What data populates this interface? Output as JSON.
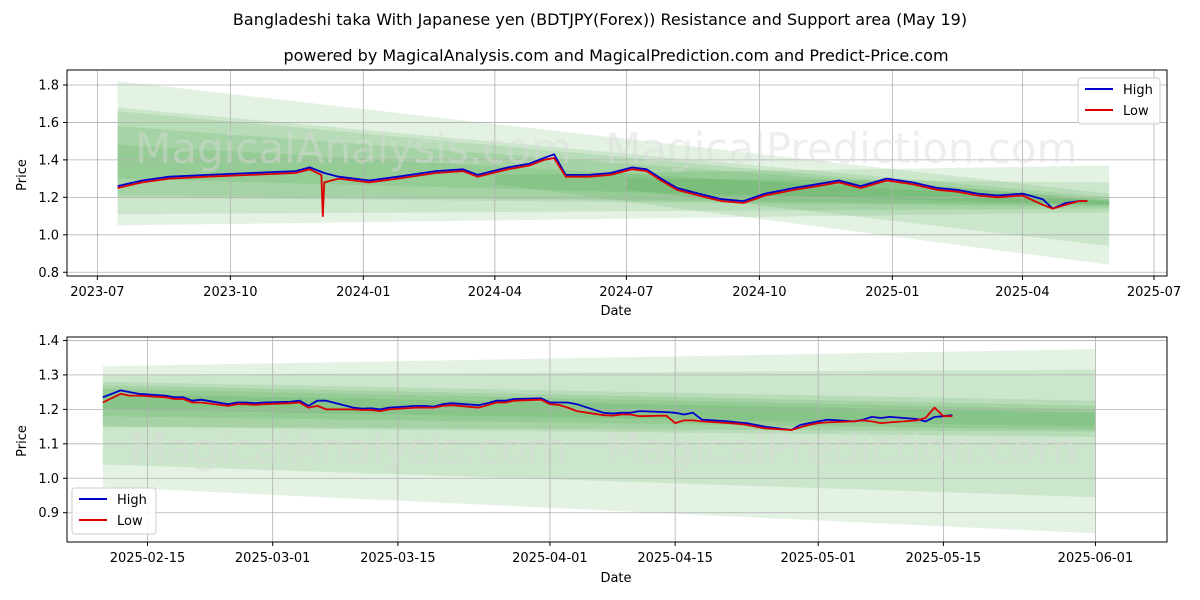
{
  "title": "Bangladeshi taka With Japanese yen (BDTJPY(Forex)) Resistance and Support area (May 19)",
  "subtitle": "powered by MagicalAnalysis.com and MagicalPrediction.com and Predict-Price.com",
  "watermarks": [
    "MagicalAnalysis.com",
    "MagicalPrediction.com"
  ],
  "colors": {
    "high": "#0000cc",
    "low": "#dd0000",
    "band": "#2e9b2e",
    "grid": "#b0b0b0"
  },
  "chart_data": [
    {
      "type": "line",
      "panel": "full-history",
      "xlabel": "Date",
      "ylabel": "Price",
      "xlim": [
        "2023-06-10",
        "2025-07-10"
      ],
      "ylim": [
        0.78,
        1.88
      ],
      "xticks": [
        {
          "label": "2023-07",
          "date": "2023-07-01"
        },
        {
          "label": "2023-10",
          "date": "2023-10-01"
        },
        {
          "label": "2024-01",
          "date": "2024-01-01"
        },
        {
          "label": "2024-04",
          "date": "2024-04-01"
        },
        {
          "label": "2024-07",
          "date": "2024-07-01"
        },
        {
          "label": "2024-10",
          "date": "2024-10-01"
        },
        {
          "label": "2025-01",
          "date": "2025-01-01"
        },
        {
          "label": "2025-04",
          "date": "2025-04-01"
        },
        {
          "label": "2025-07",
          "date": "2025-07-01"
        }
      ],
      "yticks": [
        0.8,
        1.0,
        1.2,
        1.4,
        1.6,
        1.8
      ],
      "legend": {
        "position": "top-right",
        "entries": [
          "High",
          "Low"
        ]
      },
      "series": [
        {
          "name": "High",
          "x": [
            "2023-07-15",
            "2023-08-01",
            "2023-08-20",
            "2023-09-15",
            "2023-10-15",
            "2023-11-15",
            "2023-11-25",
            "2023-12-05",
            "2023-12-15",
            "2024-01-05",
            "2024-01-25",
            "2024-02-20",
            "2024-03-10",
            "2024-03-20",
            "2024-04-10",
            "2024-04-25",
            "2024-05-05",
            "2024-05-12",
            "2024-05-20",
            "2024-06-05",
            "2024-06-20",
            "2024-07-05",
            "2024-07-15",
            "2024-07-25",
            "2024-08-05",
            "2024-08-20",
            "2024-09-05",
            "2024-09-20",
            "2024-10-05",
            "2024-10-25",
            "2024-11-10",
            "2024-11-25",
            "2024-12-10",
            "2024-12-28",
            "2025-01-15",
            "2025-02-01",
            "2025-02-15",
            "2025-03-01",
            "2025-03-15",
            "2025-04-01",
            "2025-04-15",
            "2025-04-22",
            "2025-05-01",
            "2025-05-10",
            "2025-05-16"
          ],
          "values": [
            1.26,
            1.29,
            1.31,
            1.32,
            1.33,
            1.34,
            1.36,
            1.33,
            1.31,
            1.29,
            1.31,
            1.34,
            1.35,
            1.32,
            1.36,
            1.38,
            1.41,
            1.43,
            1.32,
            1.32,
            1.33,
            1.36,
            1.35,
            1.3,
            1.25,
            1.22,
            1.19,
            1.18,
            1.22,
            1.25,
            1.27,
            1.29,
            1.26,
            1.3,
            1.28,
            1.25,
            1.24,
            1.22,
            1.21,
            1.22,
            1.19,
            1.14,
            1.17,
            1.18,
            1.18
          ]
        },
        {
          "name": "Low",
          "x": [
            "2023-07-15",
            "2023-08-01",
            "2023-08-20",
            "2023-09-15",
            "2023-10-15",
            "2023-11-15",
            "2023-11-25",
            "2023-12-03",
            "2023-12-04",
            "2023-12-05",
            "2023-12-15",
            "2024-01-05",
            "2024-01-25",
            "2024-02-20",
            "2024-03-10",
            "2024-03-20",
            "2024-04-10",
            "2024-04-25",
            "2024-05-05",
            "2024-05-12",
            "2024-05-20",
            "2024-06-05",
            "2024-06-20",
            "2024-07-05",
            "2024-07-15",
            "2024-07-25",
            "2024-08-05",
            "2024-08-20",
            "2024-09-05",
            "2024-09-20",
            "2024-10-05",
            "2024-10-25",
            "2024-11-10",
            "2024-11-25",
            "2024-12-10",
            "2024-12-28",
            "2025-01-15",
            "2025-02-01",
            "2025-02-15",
            "2025-03-01",
            "2025-03-15",
            "2025-04-01",
            "2025-04-15",
            "2025-04-22",
            "2025-05-01",
            "2025-05-10",
            "2025-05-16"
          ],
          "values": [
            1.25,
            1.28,
            1.3,
            1.31,
            1.32,
            1.33,
            1.35,
            1.32,
            1.1,
            1.28,
            1.3,
            1.28,
            1.3,
            1.33,
            1.34,
            1.31,
            1.35,
            1.37,
            1.4,
            1.41,
            1.31,
            1.31,
            1.32,
            1.35,
            1.34,
            1.29,
            1.24,
            1.21,
            1.18,
            1.17,
            1.21,
            1.24,
            1.26,
            1.28,
            1.25,
            1.29,
            1.27,
            1.24,
            1.23,
            1.21,
            1.2,
            1.21,
            1.16,
            1.14,
            1.16,
            1.18,
            1.18
          ]
        }
      ],
      "bands": [
        {
          "x": [
            "2023-07-15",
            "2025-05-31"
          ],
          "upper": [
            1.82,
            1.22
          ],
          "lower": [
            1.05,
            1.12
          ]
        },
        {
          "x": [
            "2023-07-15",
            "2025-05-31"
          ],
          "upper": [
            1.68,
            1.2
          ],
          "lower": [
            1.11,
            1.14
          ]
        },
        {
          "x": [
            "2023-07-15",
            "2025-05-31"
          ],
          "upper": [
            1.66,
            1.18
          ],
          "lower": [
            1.2,
            1.15
          ]
        },
        {
          "x": [
            "2023-07-15",
            "2025-05-31"
          ],
          "upper": [
            1.58,
            1.19
          ],
          "lower": [
            1.3,
            1.16
          ]
        },
        {
          "x": [
            "2023-07-15",
            "2025-05-31"
          ],
          "upper": [
            1.48,
            1.18
          ],
          "lower": [
            1.21,
            1.16
          ]
        },
        {
          "x": [
            "2024-04-01",
            "2025-05-31"
          ],
          "upper": [
            1.32,
            1.37
          ],
          "lower": [
            1.27,
            0.84
          ]
        },
        {
          "x": [
            "2024-07-01",
            "2025-05-31"
          ],
          "upper": [
            1.3,
            1.28
          ],
          "lower": [
            1.24,
            0.94
          ]
        }
      ]
    },
    {
      "type": "line",
      "panel": "recent",
      "xlabel": "Date",
      "ylabel": "Price",
      "xlim": [
        "2025-02-06",
        "2025-06-09"
      ],
      "ylim": [
        0.815,
        1.41
      ],
      "xticks": [
        {
          "label": "2025-02-15",
          "date": "2025-02-15"
        },
        {
          "label": "2025-03-01",
          "date": "2025-03-01"
        },
        {
          "label": "2025-03-15",
          "date": "2025-03-15"
        },
        {
          "label": "2025-04-01",
          "date": "2025-04-01"
        },
        {
          "label": "2025-04-15",
          "date": "2025-04-15"
        },
        {
          "label": "2025-05-01",
          "date": "2025-05-01"
        },
        {
          "label": "2025-05-15",
          "date": "2025-05-15"
        },
        {
          "label": "2025-06-01",
          "date": "2025-06-01"
        }
      ],
      "yticks": [
        0.9,
        1.0,
        1.1,
        1.2,
        1.3,
        1.4
      ],
      "legend": {
        "position": "bottom-left",
        "entries": [
          "High",
          "Low"
        ]
      },
      "series": [
        {
          "name": "High",
          "x": [
            "2025-02-10",
            "2025-02-12",
            "2025-02-13",
            "2025-02-14",
            "2025-02-17",
            "2025-02-18",
            "2025-02-19",
            "2025-02-20",
            "2025-02-21",
            "2025-02-24",
            "2025-02-25",
            "2025-02-26",
            "2025-02-27",
            "2025-02-28",
            "2025-03-03",
            "2025-03-04",
            "2025-03-05",
            "2025-03-06",
            "2025-03-07",
            "2025-03-10",
            "2025-03-11",
            "2025-03-12",
            "2025-03-13",
            "2025-03-14",
            "2025-03-17",
            "2025-03-18",
            "2025-03-19",
            "2025-03-20",
            "2025-03-21",
            "2025-03-24",
            "2025-03-25",
            "2025-03-26",
            "2025-03-27",
            "2025-03-28",
            "2025-03-31",
            "2025-04-01",
            "2025-04-02",
            "2025-04-03",
            "2025-04-04",
            "2025-04-07",
            "2025-04-08",
            "2025-04-09",
            "2025-04-10",
            "2025-04-11",
            "2025-04-14",
            "2025-04-15",
            "2025-04-16",
            "2025-04-17",
            "2025-04-18",
            "2025-04-21",
            "2025-04-22",
            "2025-04-23",
            "2025-04-24",
            "2025-04-25",
            "2025-04-28",
            "2025-04-29",
            "2025-04-30",
            "2025-05-01",
            "2025-05-02",
            "2025-05-05",
            "2025-05-06",
            "2025-05-07",
            "2025-05-08",
            "2025-05-09",
            "2025-05-12",
            "2025-05-13",
            "2025-05-14",
            "2025-05-15",
            "2025-05-16"
          ],
          "values": [
            1.235,
            1.255,
            1.25,
            1.245,
            1.24,
            1.235,
            1.235,
            1.225,
            1.228,
            1.215,
            1.22,
            1.22,
            1.218,
            1.22,
            1.222,
            1.225,
            1.21,
            1.225,
            1.225,
            1.205,
            1.202,
            1.203,
            1.2,
            1.205,
            1.21,
            1.21,
            1.208,
            1.215,
            1.218,
            1.212,
            1.218,
            1.225,
            1.225,
            1.23,
            1.232,
            1.22,
            1.22,
            1.22,
            1.215,
            1.19,
            1.188,
            1.19,
            1.19,
            1.195,
            1.192,
            1.19,
            1.185,
            1.19,
            1.17,
            1.165,
            1.162,
            1.16,
            1.155,
            1.15,
            1.14,
            1.155,
            1.16,
            1.165,
            1.17,
            1.165,
            1.17,
            1.178,
            1.175,
            1.178,
            1.172,
            1.165,
            1.178,
            1.18,
            1.183
          ]
        },
        {
          "name": "Low",
          "x": [
            "2025-02-10",
            "2025-02-12",
            "2025-02-13",
            "2025-02-14",
            "2025-02-17",
            "2025-02-18",
            "2025-02-19",
            "2025-02-20",
            "2025-02-21",
            "2025-02-24",
            "2025-02-25",
            "2025-02-26",
            "2025-02-27",
            "2025-02-28",
            "2025-03-03",
            "2025-03-04",
            "2025-03-05",
            "2025-03-06",
            "2025-03-07",
            "2025-03-10",
            "2025-03-11",
            "2025-03-12",
            "2025-03-13",
            "2025-03-14",
            "2025-03-17",
            "2025-03-18",
            "2025-03-19",
            "2025-03-20",
            "2025-03-21",
            "2025-03-24",
            "2025-03-25",
            "2025-03-26",
            "2025-03-27",
            "2025-03-28",
            "2025-03-31",
            "2025-04-01",
            "2025-04-02",
            "2025-04-03",
            "2025-04-04",
            "2025-04-07",
            "2025-04-08",
            "2025-04-09",
            "2025-04-10",
            "2025-04-11",
            "2025-04-14",
            "2025-04-15",
            "2025-04-16",
            "2025-04-17",
            "2025-04-18",
            "2025-04-21",
            "2025-04-22",
            "2025-04-23",
            "2025-04-24",
            "2025-04-25",
            "2025-04-28",
            "2025-04-29",
            "2025-04-30",
            "2025-05-01",
            "2025-05-02",
            "2025-05-05",
            "2025-05-06",
            "2025-05-07",
            "2025-05-08",
            "2025-05-09",
            "2025-05-12",
            "2025-05-13",
            "2025-05-14",
            "2025-05-15",
            "2025-05-16"
          ],
          "values": [
            1.22,
            1.245,
            1.24,
            1.24,
            1.235,
            1.23,
            1.23,
            1.22,
            1.22,
            1.21,
            1.215,
            1.215,
            1.213,
            1.215,
            1.218,
            1.22,
            1.205,
            1.21,
            1.2,
            1.2,
            1.198,
            1.198,
            1.195,
            1.2,
            1.205,
            1.205,
            1.205,
            1.21,
            1.212,
            1.205,
            1.212,
            1.22,
            1.22,
            1.225,
            1.228,
            1.215,
            1.213,
            1.205,
            1.195,
            1.183,
            1.182,
            1.185,
            1.185,
            1.18,
            1.182,
            1.16,
            1.168,
            1.168,
            1.165,
            1.16,
            1.158,
            1.155,
            1.15,
            1.145,
            1.14,
            1.148,
            1.155,
            1.16,
            1.162,
            1.165,
            1.168,
            1.165,
            1.16,
            1.162,
            1.168,
            1.175,
            1.205,
            1.18,
            1.18
          ]
        }
      ],
      "bands": [
        {
          "x": [
            "2025-02-10",
            "2025-06-01"
          ],
          "upper": [
            1.325,
            1.375
          ],
          "lower": [
            0.975,
            0.84
          ]
        },
        {
          "x": [
            "2025-02-10",
            "2025-06-01"
          ],
          "upper": [
            1.3,
            1.315
          ],
          "lower": [
            1.04,
            0.945
          ]
        },
        {
          "x": [
            "2025-02-10",
            "2025-06-01"
          ],
          "upper": [
            1.28,
            1.225
          ],
          "lower": [
            1.15,
            1.12
          ]
        },
        {
          "x": [
            "2025-02-10",
            "2025-06-01"
          ],
          "upper": [
            1.27,
            1.21
          ],
          "lower": [
            1.15,
            1.135
          ]
        },
        {
          "x": [
            "2025-02-10",
            "2025-06-01"
          ],
          "upper": [
            1.26,
            1.2
          ],
          "lower": [
            1.18,
            1.14
          ]
        },
        {
          "x": [
            "2025-02-10",
            "2025-06-01"
          ],
          "upper": [
            1.245,
            1.19
          ],
          "lower": [
            1.2,
            1.15
          ]
        }
      ]
    }
  ]
}
